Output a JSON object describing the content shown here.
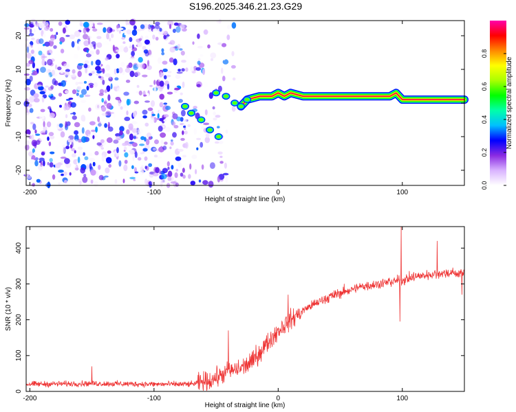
{
  "title": "S196.2025.346.21.23.G29",
  "chart_data": [
    {
      "type": "heatmap",
      "name": "spectrogram",
      "xlabel": "Height of straight line (km)",
      "ylabel": "Frequency (Hz)",
      "xlim": [
        -203,
        150
      ],
      "ylim": [
        -24.5,
        24.5
      ],
      "xticks": [
        -200,
        -100,
        0,
        100
      ],
      "yticks": [
        -20,
        -10,
        0,
        10,
        20
      ],
      "colorbar": {
        "label": "Normalized spectral amplitude",
        "range": [
          0,
          1
        ],
        "ticks": [
          "0.0",
          "0.2",
          "0.4",
          "0.6",
          "0.8"
        ],
        "colors": [
          "#ffffff",
          "#d9b3ff",
          "#8a2be2",
          "#0000ff",
          "#00bfff",
          "#00ffaa",
          "#00ff00",
          "#aaff00",
          "#ffff00",
          "#ff8800",
          "#ff0000",
          "#ff00aa"
        ]
      },
      "noise_region_km": [
        -203,
        -45
      ],
      "noise_amplitude_range": [
        0.0,
        0.35
      ],
      "signal_ridge": [
        {
          "x": -75,
          "y": -1
        },
        {
          "x": -70,
          "y": -3
        },
        {
          "x": -62,
          "y": -5
        },
        {
          "x": -55,
          "y": -8
        },
        {
          "x": -48,
          "y": -10
        },
        {
          "x": -50,
          "y": 3
        },
        {
          "x": -42,
          "y": 2
        },
        {
          "x": -35,
          "y": 0
        },
        {
          "x": -30,
          "y": -1
        },
        {
          "x": -25,
          "y": 1
        },
        {
          "x": -15,
          "y": 2
        },
        {
          "x": -5,
          "y": 2
        },
        {
          "x": 0,
          "y": 3
        },
        {
          "x": 5,
          "y": 2
        },
        {
          "x": 10,
          "y": 3
        },
        {
          "x": 20,
          "y": 2
        },
        {
          "x": 60,
          "y": 2
        },
        {
          "x": 90,
          "y": 2
        },
        {
          "x": 95,
          "y": 3
        },
        {
          "x": 100,
          "y": 1
        },
        {
          "x": 150,
          "y": 1
        }
      ],
      "signal_peak_amplitude": 0.95
    },
    {
      "type": "line",
      "name": "snr",
      "xlabel": "Height of straight line (km)",
      "ylabel": "SNR (10 * v/v)",
      "xlim": [
        -203,
        150
      ],
      "ylim": [
        0,
        460
      ],
      "xticks": [
        -200,
        -100,
        0,
        100
      ],
      "yticks": [
        0,
        100,
        200,
        300,
        400
      ],
      "color": "#ee3333",
      "trend": [
        {
          "x": -203,
          "y": 20
        },
        {
          "x": -150,
          "y": 22
        },
        {
          "x": -100,
          "y": 20
        },
        {
          "x": -70,
          "y": 20
        },
        {
          "x": -55,
          "y": 30
        },
        {
          "x": -40,
          "y": 55
        },
        {
          "x": -30,
          "y": 65
        },
        {
          "x": -20,
          "y": 85
        },
        {
          "x": -10,
          "y": 130
        },
        {
          "x": 0,
          "y": 170
        },
        {
          "x": 10,
          "y": 200
        },
        {
          "x": 20,
          "y": 225
        },
        {
          "x": 30,
          "y": 245
        },
        {
          "x": 40,
          "y": 262
        },
        {
          "x": 50,
          "y": 275
        },
        {
          "x": 60,
          "y": 285
        },
        {
          "x": 70,
          "y": 295
        },
        {
          "x": 80,
          "y": 300
        },
        {
          "x": 90,
          "y": 305
        },
        {
          "x": 100,
          "y": 310
        },
        {
          "x": 110,
          "y": 320
        },
        {
          "x": 120,
          "y": 325
        },
        {
          "x": 130,
          "y": 330
        },
        {
          "x": 140,
          "y": 330
        },
        {
          "x": 150,
          "y": 330
        }
      ],
      "spikes": [
        {
          "x": -150,
          "y": 70
        },
        {
          "x": -40,
          "y": 170
        },
        {
          "x": -18,
          "y": 130
        },
        {
          "x": 8,
          "y": 270
        },
        {
          "x": 99,
          "y": 460
        },
        {
          "x": 98,
          "y": 195
        },
        {
          "x": 128,
          "y": 420
        },
        {
          "x": 148,
          "y": 270
        }
      ],
      "noise_amplitude": 12,
      "noise_amplitude_transition": 40
    }
  ]
}
